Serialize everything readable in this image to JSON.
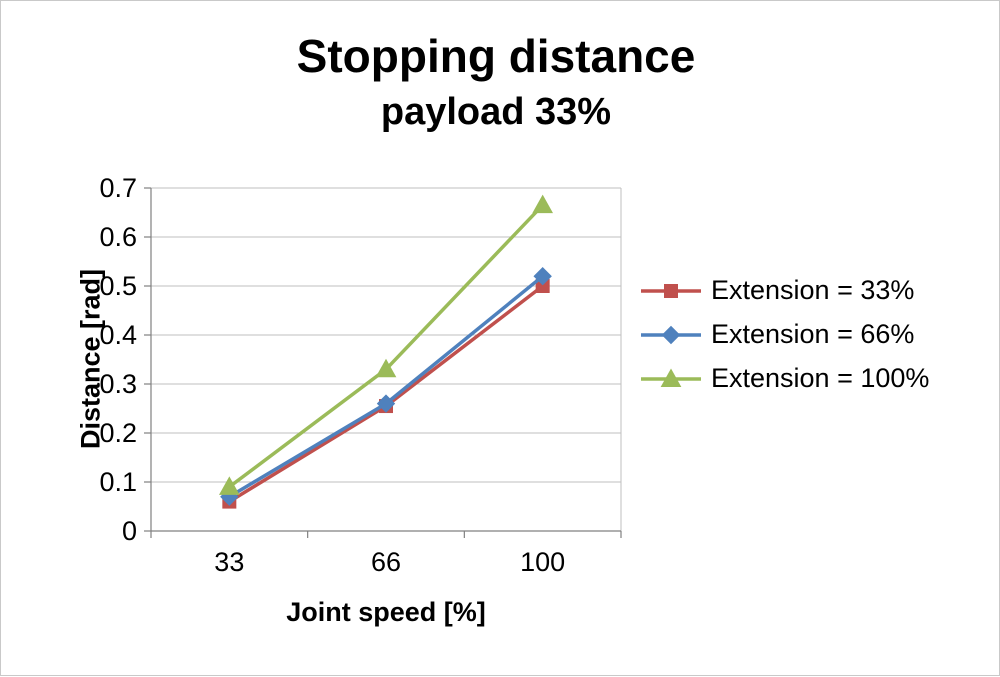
{
  "title": "Stopping distance",
  "subtitle": "payload 33%",
  "chart_data": {
    "type": "line",
    "title": "Stopping distance",
    "subtitle": "payload 33%",
    "categories": [
      33,
      66,
      100
    ],
    "series": [
      {
        "name": "Extension = 33%",
        "marker": "square",
        "color": "#C0504D",
        "values": [
          0.06,
          0.255,
          0.5
        ]
      },
      {
        "name": "Extension = 66%",
        "marker": "diamond",
        "color": "#4F81BD",
        "values": [
          0.07,
          0.26,
          0.52
        ]
      },
      {
        "name": "Extension = 100%",
        "marker": "triangle",
        "color": "#9BBB59",
        "values": [
          0.09,
          0.33,
          0.665
        ]
      }
    ],
    "xlabel": "Joint speed [%]",
    "ylabel": "Distance [rad]",
    "ylim": [
      0,
      0.7
    ],
    "ytick_step": 0.1,
    "ytick_labels": [
      "0",
      "0.1",
      "0.2",
      "0.3",
      "0.4",
      "0.5",
      "0.6",
      "0.7"
    ],
    "grid": "horizontal",
    "gridline_color": "#bfbfbf",
    "axis_color": "#808080",
    "legend_position": "right"
  }
}
